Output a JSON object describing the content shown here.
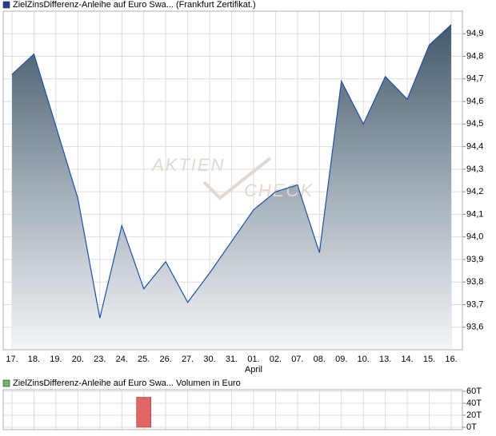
{
  "watermark": [
    "AKTIEN",
    "CHECK"
  ],
  "chart_data": [
    {
      "type": "area",
      "categories": [
        "17.",
        "18.",
        "19.",
        "20.",
        "23.",
        "24.",
        "25.",
        "26.",
        "27.",
        "30.",
        "31.",
        "01.",
        "02.",
        "07.",
        "08.",
        "09.",
        "10.",
        "13.",
        "14.",
        "15.",
        "16."
      ],
      "x_sublabels": [
        null,
        null,
        null,
        null,
        null,
        null,
        null,
        null,
        null,
        null,
        null,
        "April",
        null,
        null,
        null,
        null,
        null,
        null,
        null,
        null,
        null
      ],
      "series": [
        {
          "name": "ZielZinsDifferenz-Anleihe auf Euro Swa... (Frankfurt Zertifikat.)",
          "color": "#1f4fa8",
          "legend_color": "#1f3f99",
          "values": [
            94.72,
            94.81,
            94.49,
            94.17,
            93.64,
            94.05,
            93.77,
            93.89,
            93.71,
            93.84,
            93.98,
            94.12,
            94.2,
            94.23,
            93.93,
            94.69,
            94.5,
            94.71,
            94.61,
            94.85,
            94.94
          ]
        }
      ],
      "ylim": [
        93.5,
        95.0
      ],
      "yticks": [
        {
          "value": 93.6,
          "label": "93,6"
        },
        {
          "value": 93.7,
          "label": "93,7"
        },
        {
          "value": 93.8,
          "label": "93,8"
        },
        {
          "value": 93.9,
          "label": "93,9"
        },
        {
          "value": 94.0,
          "label": "94,0"
        },
        {
          "value": 94.1,
          "label": "94,1"
        },
        {
          "value": 94.2,
          "label": "94,2"
        },
        {
          "value": 94.3,
          "label": "94,3"
        },
        {
          "value": 94.4,
          "label": "94,4"
        },
        {
          "value": 94.5,
          "label": "94,5"
        },
        {
          "value": 94.6,
          "label": "94,6"
        },
        {
          "value": 94.7,
          "label": "94,7"
        },
        {
          "value": 94.8,
          "label": "94,8"
        },
        {
          "value": 94.9,
          "label": "94,9"
        }
      ],
      "grid": true
    },
    {
      "type": "bar",
      "series": [
        {
          "name": "ZielZinsDifferenz-Anleihe auf Euro Swa... Volumen in Euro",
          "color": "#e06666",
          "legend_color": "#66bb66",
          "values": [
            0,
            0,
            0,
            0,
            0,
            0,
            50000,
            0,
            0,
            0,
            0,
            0,
            0,
            0,
            0,
            0,
            0,
            0,
            0,
            0,
            0
          ]
        }
      ],
      "ylim": [
        0,
        60000
      ],
      "yticks": [
        {
          "value": 0,
          "label": "0T"
        },
        {
          "value": 20000,
          "label": "20T"
        },
        {
          "value": 40000,
          "label": "40T"
        },
        {
          "value": 60000,
          "label": "60T"
        }
      ],
      "grid": true
    }
  ]
}
